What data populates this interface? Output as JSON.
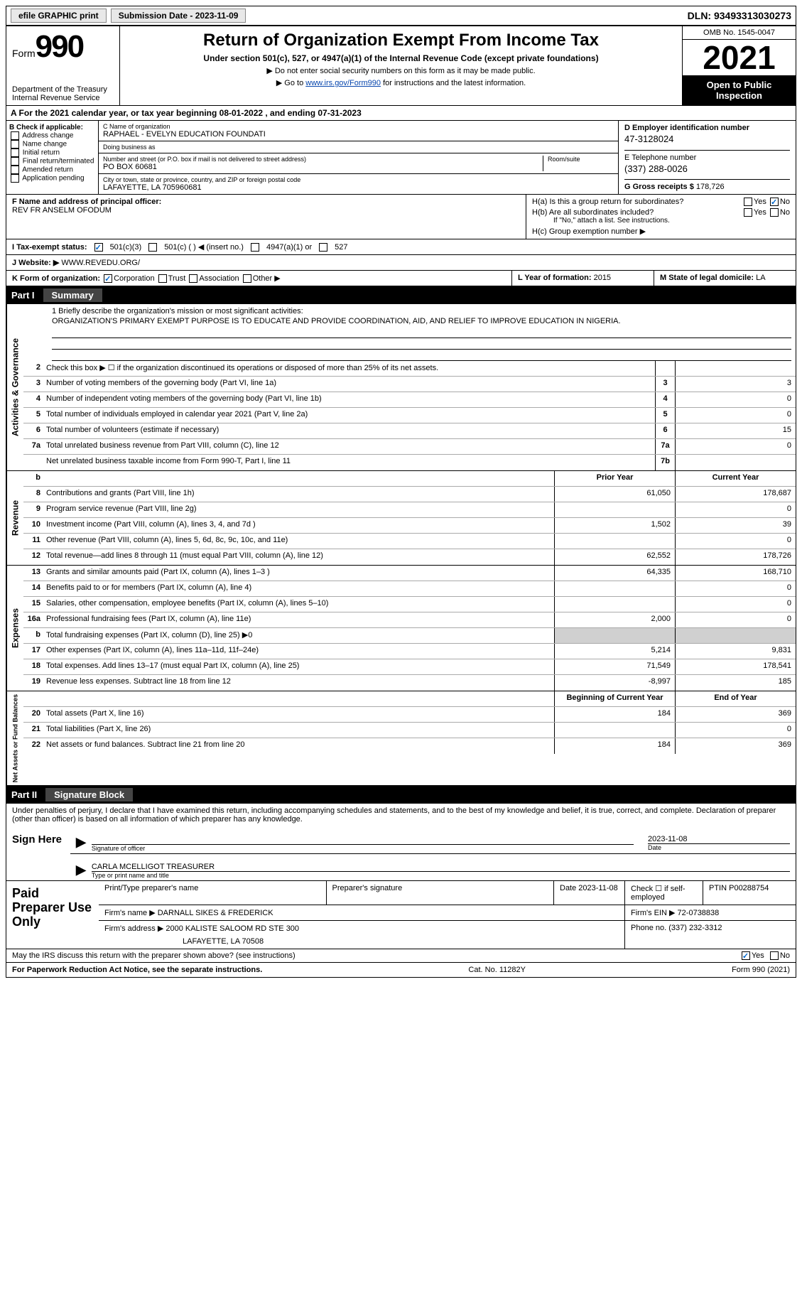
{
  "topbar": {
    "efile": "efile GRAPHIC print",
    "submission_label": "Submission Date - 2023-11-09",
    "dln": "DLN: 93493313030273"
  },
  "header": {
    "form_label": "Form",
    "form_num": "990",
    "dept": "Department of the Treasury Internal Revenue Service",
    "title": "Return of Organization Exempt From Income Tax",
    "sub": "Under section 501(c), 527, or 4947(a)(1) of the Internal Revenue Code (except private foundations)",
    "sub2a": "▶ Do not enter social security numbers on this form as it may be made public.",
    "sub2b_pre": "▶ Go to ",
    "sub2b_link": "www.irs.gov/Form990",
    "sub2b_post": " for instructions and the latest information.",
    "omb": "OMB No. 1545-0047",
    "year": "2021",
    "inspect": "Open to Public Inspection"
  },
  "cal": "A For the 2021 calendar year, or tax year beginning 08-01-2022  , and ending 07-31-2023",
  "B": {
    "hdr": "B Check if applicable:",
    "items": [
      "Address change",
      "Name change",
      "Initial return",
      "Final return/terminated",
      "Amended return",
      "Application pending"
    ]
  },
  "C": {
    "name_label": "C Name of organization",
    "name": "RAPHAEL - EVELYN EDUCATION FOUNDATI",
    "dba_label": "Doing business as",
    "dba": "",
    "street_label": "Number and street (or P.O. box if mail is not delivered to street address)",
    "room_label": "Room/suite",
    "street": "PO BOX 60681",
    "city_label": "City or town, state or province, country, and ZIP or foreign postal code",
    "city": "LAFAYETTE, LA  705960681"
  },
  "D": {
    "label": "D Employer identification number",
    "val": "47-3128024"
  },
  "E": {
    "label": "E Telephone number",
    "val": "(337) 288-0026"
  },
  "G": {
    "label": "G Gross receipts $",
    "val": "178,726"
  },
  "F": {
    "label": "F Name and address of principal officer:",
    "name": "REV FR ANSELM OFODUM"
  },
  "H": {
    "a": "H(a)  Is this a group return for subordinates?",
    "b": "H(b)  Are all subordinates included?",
    "b_note": "If \"No,\" attach a list. See instructions.",
    "c": "H(c)  Group exemption number ▶",
    "yes": "Yes",
    "no": "No"
  },
  "I": {
    "label": "I   Tax-exempt status:",
    "c3": "501(c)(3)",
    "c": "501(c) (  ) ◀ (insert no.)",
    "a1": "4947(a)(1) or",
    "s527": "527"
  },
  "J": {
    "label": "J   Website: ▶",
    "val": "WWW.REVEDU.ORG/"
  },
  "K": {
    "label": "K Form of organization:",
    "corp": "Corporation",
    "trust": "Trust",
    "assoc": "Association",
    "other": "Other ▶"
  },
  "L": {
    "label": "L Year of formation:",
    "val": "2015"
  },
  "M": {
    "label": "M State of legal domicile:",
    "val": "LA"
  },
  "part1": {
    "label": "Part I",
    "title": "Summary"
  },
  "mission": {
    "label": "1   Briefly describe the organization's mission or most significant activities:",
    "text": "ORGANIZATION'S PRIMARY EXEMPT PURPOSE IS TO EDUCATE AND PROVIDE COORDINATION, AID, AND RELIEF TO IMPROVE EDUCATION IN NIGERIA."
  },
  "lines_ag": [
    {
      "n": "2",
      "t": "Check this box ▶ ☐ if the organization discontinued its operations or disposed of more than 25% of its net assets.",
      "box": "",
      "py": "",
      "cy": ""
    },
    {
      "n": "3",
      "t": "Number of voting members of the governing body (Part VI, line 1a)",
      "box": "3",
      "py": "",
      "cy": "3"
    },
    {
      "n": "4",
      "t": "Number of independent voting members of the governing body (Part VI, line 1b)",
      "box": "4",
      "py": "",
      "cy": "0"
    },
    {
      "n": "5",
      "t": "Total number of individuals employed in calendar year 2021 (Part V, line 2a)",
      "box": "5",
      "py": "",
      "cy": "0"
    },
    {
      "n": "6",
      "t": "Total number of volunteers (estimate if necessary)",
      "box": "6",
      "py": "",
      "cy": "15"
    },
    {
      "n": "7a",
      "t": "Total unrelated business revenue from Part VIII, column (C), line 12",
      "box": "7a",
      "py": "",
      "cy": "0"
    },
    {
      "n": "",
      "t": "Net unrelated business taxable income from Form 990-T, Part I, line 11",
      "box": "7b",
      "py": "",
      "cy": ""
    }
  ],
  "col_hdrs": {
    "py": "Prior Year",
    "cy": "Current Year"
  },
  "lines_rev": [
    {
      "n": "8",
      "t": "Contributions and grants (Part VIII, line 1h)",
      "py": "61,050",
      "cy": "178,687"
    },
    {
      "n": "9",
      "t": "Program service revenue (Part VIII, line 2g)",
      "py": "",
      "cy": "0"
    },
    {
      "n": "10",
      "t": "Investment income (Part VIII, column (A), lines 3, 4, and 7d )",
      "py": "1,502",
      "cy": "39"
    },
    {
      "n": "11",
      "t": "Other revenue (Part VIII, column (A), lines 5, 6d, 8c, 9c, 10c, and 11e)",
      "py": "",
      "cy": "0"
    },
    {
      "n": "12",
      "t": "Total revenue—add lines 8 through 11 (must equal Part VIII, column (A), line 12)",
      "py": "62,552",
      "cy": "178,726"
    }
  ],
  "lines_exp": [
    {
      "n": "13",
      "t": "Grants and similar amounts paid (Part IX, column (A), lines 1–3 )",
      "py": "64,335",
      "cy": "168,710"
    },
    {
      "n": "14",
      "t": "Benefits paid to or for members (Part IX, column (A), line 4)",
      "py": "",
      "cy": "0"
    },
    {
      "n": "15",
      "t": "Salaries, other compensation, employee benefits (Part IX, column (A), lines 5–10)",
      "py": "",
      "cy": "0"
    },
    {
      "n": "16a",
      "t": "Professional fundraising fees (Part IX, column (A), line 11e)",
      "py": "2,000",
      "cy": "0"
    },
    {
      "n": "b",
      "t": "Total fundraising expenses (Part IX, column (D), line 25) ▶0",
      "py": "SHADE",
      "cy": "SHADE"
    },
    {
      "n": "17",
      "t": "Other expenses (Part IX, column (A), lines 11a–11d, 11f–24e)",
      "py": "5,214",
      "cy": "9,831"
    },
    {
      "n": "18",
      "t": "Total expenses. Add lines 13–17 (must equal Part IX, column (A), line 25)",
      "py": "71,549",
      "cy": "178,541"
    },
    {
      "n": "19",
      "t": "Revenue less expenses. Subtract line 18 from line 12",
      "py": "-8,997",
      "cy": "185"
    }
  ],
  "col_hdrs2": {
    "py": "Beginning of Current Year",
    "cy": "End of Year"
  },
  "lines_na": [
    {
      "n": "20",
      "t": "Total assets (Part X, line 16)",
      "py": "184",
      "cy": "369"
    },
    {
      "n": "21",
      "t": "Total liabilities (Part X, line 26)",
      "py": "",
      "cy": "0"
    },
    {
      "n": "22",
      "t": "Net assets or fund balances. Subtract line 21 from line 20",
      "py": "184",
      "cy": "369"
    }
  ],
  "vtabs": {
    "ag": "Activities & Governance",
    "rev": "Revenue",
    "exp": "Expenses",
    "na": "Net Assets or Fund Balances"
  },
  "part2": {
    "label": "Part II",
    "title": "Signature Block"
  },
  "sig": {
    "intro": "Under penalties of perjury, I declare that I have examined this return, including accompanying schedules and statements, and to the best of my knowledge and belief, it is true, correct, and complete. Declaration of preparer (other than officer) is based on all information of which preparer has any knowledge.",
    "sign_here": "Sign Here",
    "sig_label": "Signature of officer",
    "date_label": "Date",
    "date": "2023-11-08",
    "name": "CARLA MCELLIGOT TREASURER",
    "name_label": "Type or print name and title"
  },
  "prep": {
    "title": "Paid Preparer Use Only",
    "r1": {
      "a": "Print/Type preparer's name",
      "b": "Preparer's signature",
      "c": "Date 2023-11-08",
      "d": "Check ☐ if self-employed",
      "e": "PTIN P00288754"
    },
    "r2": {
      "a": "Firm's name    ▶ DARNALL SIKES & FREDERICK",
      "b": "Firm's EIN ▶ 72-0738838"
    },
    "r3": {
      "a": "Firm's address ▶ 2000 KALISTE SALOOM RD STE 300",
      "b": "Phone no. (337) 232-3312"
    },
    "r3b": "LAFAYETTE, LA  70508"
  },
  "discuss": {
    "q": "May the IRS discuss this return with the preparer shown above? (see instructions)",
    "yes": "Yes",
    "no": "No"
  },
  "footer": {
    "pra": "For Paperwork Reduction Act Notice, see the separate instructions.",
    "cat": "Cat. No. 11282Y",
    "form": "Form 990 (2021)"
  }
}
